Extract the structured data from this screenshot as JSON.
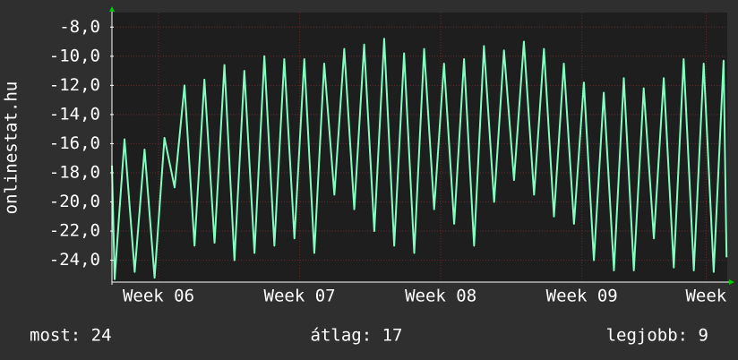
{
  "chart_data": {
    "type": "line",
    "y_label": "onlinestat.hu",
    "x": [
      5.67,
      5.689,
      5.759,
      5.831,
      5.901,
      5.972,
      6.042,
      6.114,
      6.184,
      6.255,
      6.325,
      6.397,
      6.467,
      6.538,
      6.608,
      6.68,
      6.75,
      6.821,
      6.891,
      6.963,
      7.033,
      7.104,
      7.174,
      7.246,
      7.316,
      7.387,
      7.457,
      7.529,
      7.599,
      7.67,
      7.74,
      7.812,
      7.882,
      7.953,
      8.023,
      8.095,
      8.165,
      8.236,
      8.306,
      8.378,
      8.448,
      8.519,
      8.589,
      8.661,
      8.731,
      8.802,
      8.872,
      8.944,
      9.014,
      9.085,
      9.155,
      9.227,
      9.297,
      9.368,
      9.438,
      9.51,
      9.58,
      9.651,
      9.721,
      9.793,
      9.863,
      9.934,
      10.004,
      10.025
    ],
    "series": [
      {
        "name": "onlinestat.hu",
        "color": "#80ffc0",
        "values": [
          -17.5,
          -25.3,
          -15.7,
          -24.8,
          -16.4,
          -25.2,
          -15.6,
          -19,
          -12,
          -23,
          -11.6,
          -22.8,
          -10.6,
          -24,
          -11,
          -23.5,
          -10,
          -23,
          -10.2,
          -22.5,
          -10.2,
          -23.5,
          -10.5,
          -19.5,
          -9.5,
          -20.5,
          -9.2,
          -22,
          -8.8,
          -23,
          -9.8,
          -23.5,
          -9.5,
          -20.5,
          -10.5,
          -21.5,
          -10.2,
          -23,
          -9.3,
          -20,
          -9.6,
          -18.5,
          -9,
          -19.5,
          -9.5,
          -21,
          -10.5,
          -21.5,
          -11.8,
          -24,
          -12.5,
          -24.7,
          -11.5,
          -24.7,
          -12.2,
          -22.5,
          -11.5,
          -24.5,
          -10.2,
          -24.7,
          -10.5,
          -24.8,
          -10.3,
          -23.8
        ]
      }
    ],
    "xlim": [
      5.67,
      10.03
    ],
    "xticks": [
      {
        "value": 6,
        "label": "Week 06"
      },
      {
        "value": 7,
        "label": "Week 07"
      },
      {
        "value": 8,
        "label": "Week 08"
      },
      {
        "value": 9,
        "label": "Week 09"
      },
      {
        "value": 9.88,
        "label": "Week"
      }
    ],
    "ylim": [
      -25.5,
      -7
    ],
    "yticks": [
      {
        "value": -24,
        "label": "-24,0"
      },
      {
        "value": -22,
        "label": "-22,0"
      },
      {
        "value": -20,
        "label": "-20,0"
      },
      {
        "value": -18,
        "label": "-18,0"
      },
      {
        "value": -16,
        "label": "-16,0"
      },
      {
        "value": -14,
        "label": "-14,0"
      },
      {
        "value": -12,
        "label": "-12,0"
      },
      {
        "value": -10,
        "label": "-10,0"
      },
      {
        "value": -8,
        "label": "-8,0"
      }
    ],
    "grid": true,
    "stats": [
      "most: 24",
      "átlag: 17",
      "legjobb: 9"
    ]
  }
}
